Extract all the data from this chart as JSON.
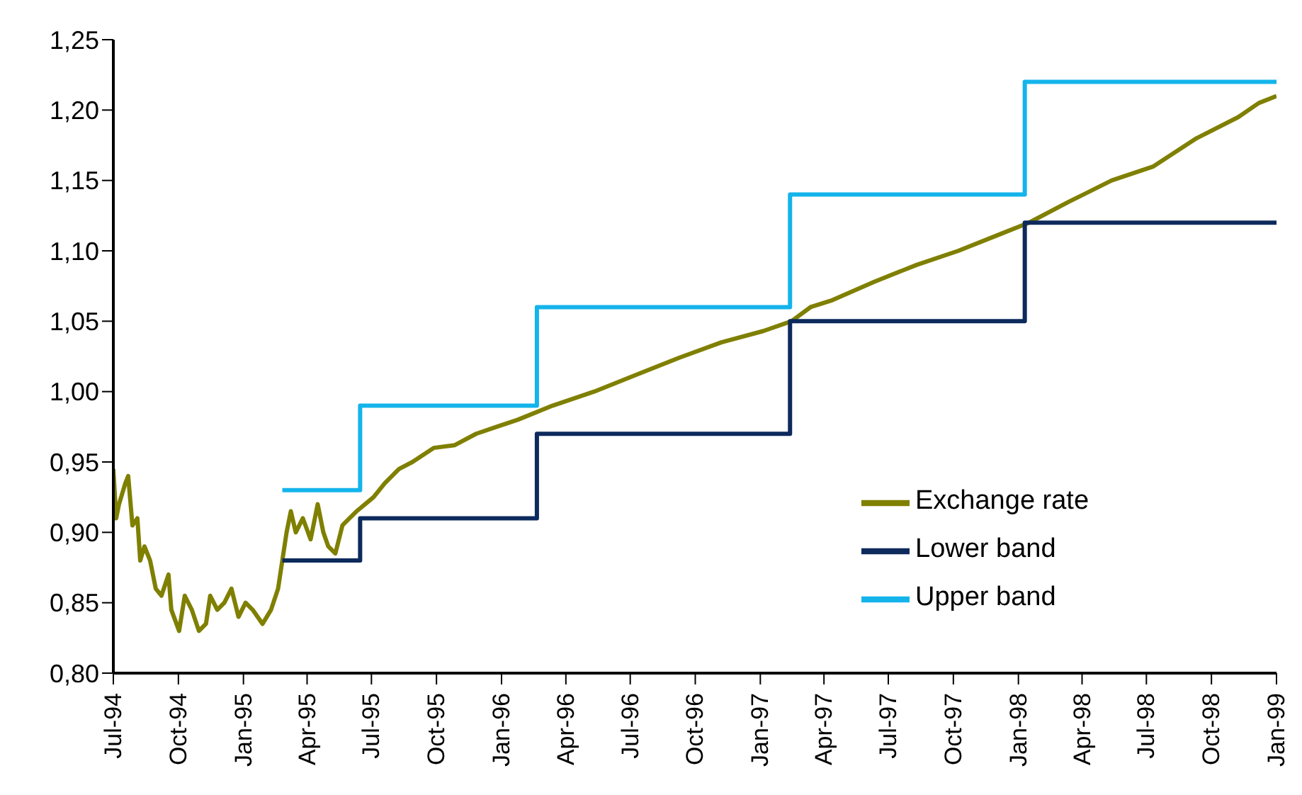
{
  "chart_data": {
    "type": "line",
    "legend": "bottom right",
    "grid": false,
    "marker": "none",
    "xlim": [
      "1994-07-01",
      "1999-01-01"
    ],
    "xticks": [
      {
        "value": "1994-07-01",
        "label": "Jul-94"
      },
      {
        "value": "1994-10-01",
        "label": "Oct-94"
      },
      {
        "value": "1995-01-01",
        "label": "Jan-95"
      },
      {
        "value": "1995-04-01",
        "label": "Apr-95"
      },
      {
        "value": "1995-07-01",
        "label": "Jul-95"
      },
      {
        "value": "1995-10-01",
        "label": "Oct-95"
      },
      {
        "value": "1996-01-01",
        "label": "Jan-96"
      },
      {
        "value": "1996-04-01",
        "label": "Apr-96"
      },
      {
        "value": "1996-07-01",
        "label": "Jul-96"
      },
      {
        "value": "1996-10-01",
        "label": "Oct-96"
      },
      {
        "value": "1997-01-01",
        "label": "Jan-97"
      },
      {
        "value": "1997-04-01",
        "label": "Apr-97"
      },
      {
        "value": "1997-07-01",
        "label": "Jul-97"
      },
      {
        "value": "1997-10-01",
        "label": "Oct-97"
      },
      {
        "value": "1998-01-01",
        "label": "Jan-98"
      },
      {
        "value": "1998-04-01",
        "label": "Apr-98"
      },
      {
        "value": "1998-07-01",
        "label": "Jul-98"
      },
      {
        "value": "1998-10-01",
        "label": "Oct-98"
      },
      {
        "value": "1999-01-01",
        "label": "Jan-99"
      }
    ],
    "ylim": [
      0.8,
      1.25
    ],
    "yticks": [
      {
        "value": 0.8,
        "label": "0,80"
      },
      {
        "value": 0.85,
        "label": "0,85"
      },
      {
        "value": 0.9,
        "label": "0,90"
      },
      {
        "value": 0.95,
        "label": "0,95"
      },
      {
        "value": 1.0,
        "label": "1,00"
      },
      {
        "value": 1.05,
        "label": "1,05"
      },
      {
        "value": 1.1,
        "label": "1,10"
      },
      {
        "value": 1.15,
        "label": "1,15"
      },
      {
        "value": 1.2,
        "label": "1,20"
      },
      {
        "value": 1.25,
        "label": "1,25"
      }
    ],
    "series": [
      {
        "name": "Exchange rate",
        "color": "#7f7f00",
        "type": "line",
        "x": [
          "1994-07-01",
          "1994-07-05",
          "1994-07-09",
          "1994-07-18",
          "1994-07-22",
          "1994-07-28",
          "1994-08-04",
          "1994-08-08",
          "1994-08-14",
          "1994-08-22",
          "1994-08-30",
          "1994-09-07",
          "1994-09-17",
          "1994-09-21",
          "1994-10-02",
          "1994-10-10",
          "1994-10-20",
          "1994-10-30",
          "1994-11-09",
          "1994-11-15",
          "1994-11-25",
          "1994-12-05",
          "1994-12-15",
          "1994-12-25",
          "1995-01-04",
          "1995-01-14",
          "1995-01-28",
          "1995-02-09",
          "1995-02-19",
          "1995-02-25",
          "1995-03-03",
          "1995-03-09",
          "1995-03-16",
          "1995-03-26",
          "1995-04-06",
          "1995-04-16",
          "1995-04-24",
          "1995-05-01",
          "1995-05-11",
          "1995-05-21",
          "1995-05-31",
          "1995-06-10",
          "1995-06-22",
          "1995-07-04",
          "1995-07-20",
          "1995-08-09",
          "1995-08-28",
          "1995-09-27",
          "1995-10-27",
          "1995-11-26",
          "1995-12-25",
          "1996-01-24",
          "1996-03-13",
          "1996-05-11",
          "1996-07-10",
          "1996-09-08",
          "1996-11-07",
          "1997-01-05",
          "1997-02-14",
          "1997-03-13",
          "1997-04-13",
          "1997-06-11",
          "1997-08-10",
          "1997-10-08",
          "1997-12-07",
          "1998-01-16",
          "1998-03-14",
          "1998-05-13",
          "1998-07-11",
          "1998-09-10",
          "1998-11-08",
          "1998-12-07",
          "1999-01-01"
        ],
        "values": [
          0.945,
          0.91,
          0.92,
          0.935,
          0.94,
          0.905,
          0.91,
          0.88,
          0.89,
          0.88,
          0.86,
          0.855,
          0.87,
          0.845,
          0.83,
          0.855,
          0.845,
          0.83,
          0.835,
          0.855,
          0.845,
          0.85,
          0.86,
          0.84,
          0.85,
          0.845,
          0.835,
          0.845,
          0.86,
          0.88,
          0.9,
          0.915,
          0.9,
          0.91,
          0.895,
          0.92,
          0.9,
          0.89,
          0.885,
          0.905,
          0.91,
          0.915,
          0.92,
          0.925,
          0.935,
          0.945,
          0.95,
          0.96,
          0.962,
          0.97,
          0.975,
          0.98,
          0.99,
          1.0,
          1.012,
          1.024,
          1.035,
          1.043,
          1.05,
          1.06,
          1.065,
          1.078,
          1.09,
          1.1,
          1.112,
          1.12,
          1.135,
          1.15,
          1.16,
          1.18,
          1.195,
          1.205,
          1.21
        ]
      },
      {
        "name": "Lower band",
        "color": "#0d2a5c",
        "type": "step",
        "x": [
          "1995-02-25",
          "1995-06-15",
          "1996-02-20",
          "1997-02-12",
          "1998-01-10",
          "1999-01-01"
        ],
        "values": [
          0.88,
          0.91,
          0.97,
          1.05,
          1.12,
          1.12
        ]
      },
      {
        "name": "Upper band",
        "color": "#14b4eb",
        "type": "step",
        "x": [
          "1995-02-25",
          "1995-06-15",
          "1996-02-20",
          "1997-02-12",
          "1998-01-10",
          "1999-01-01"
        ],
        "values": [
          0.93,
          0.99,
          1.06,
          1.14,
          1.22,
          1.22
        ]
      }
    ]
  }
}
